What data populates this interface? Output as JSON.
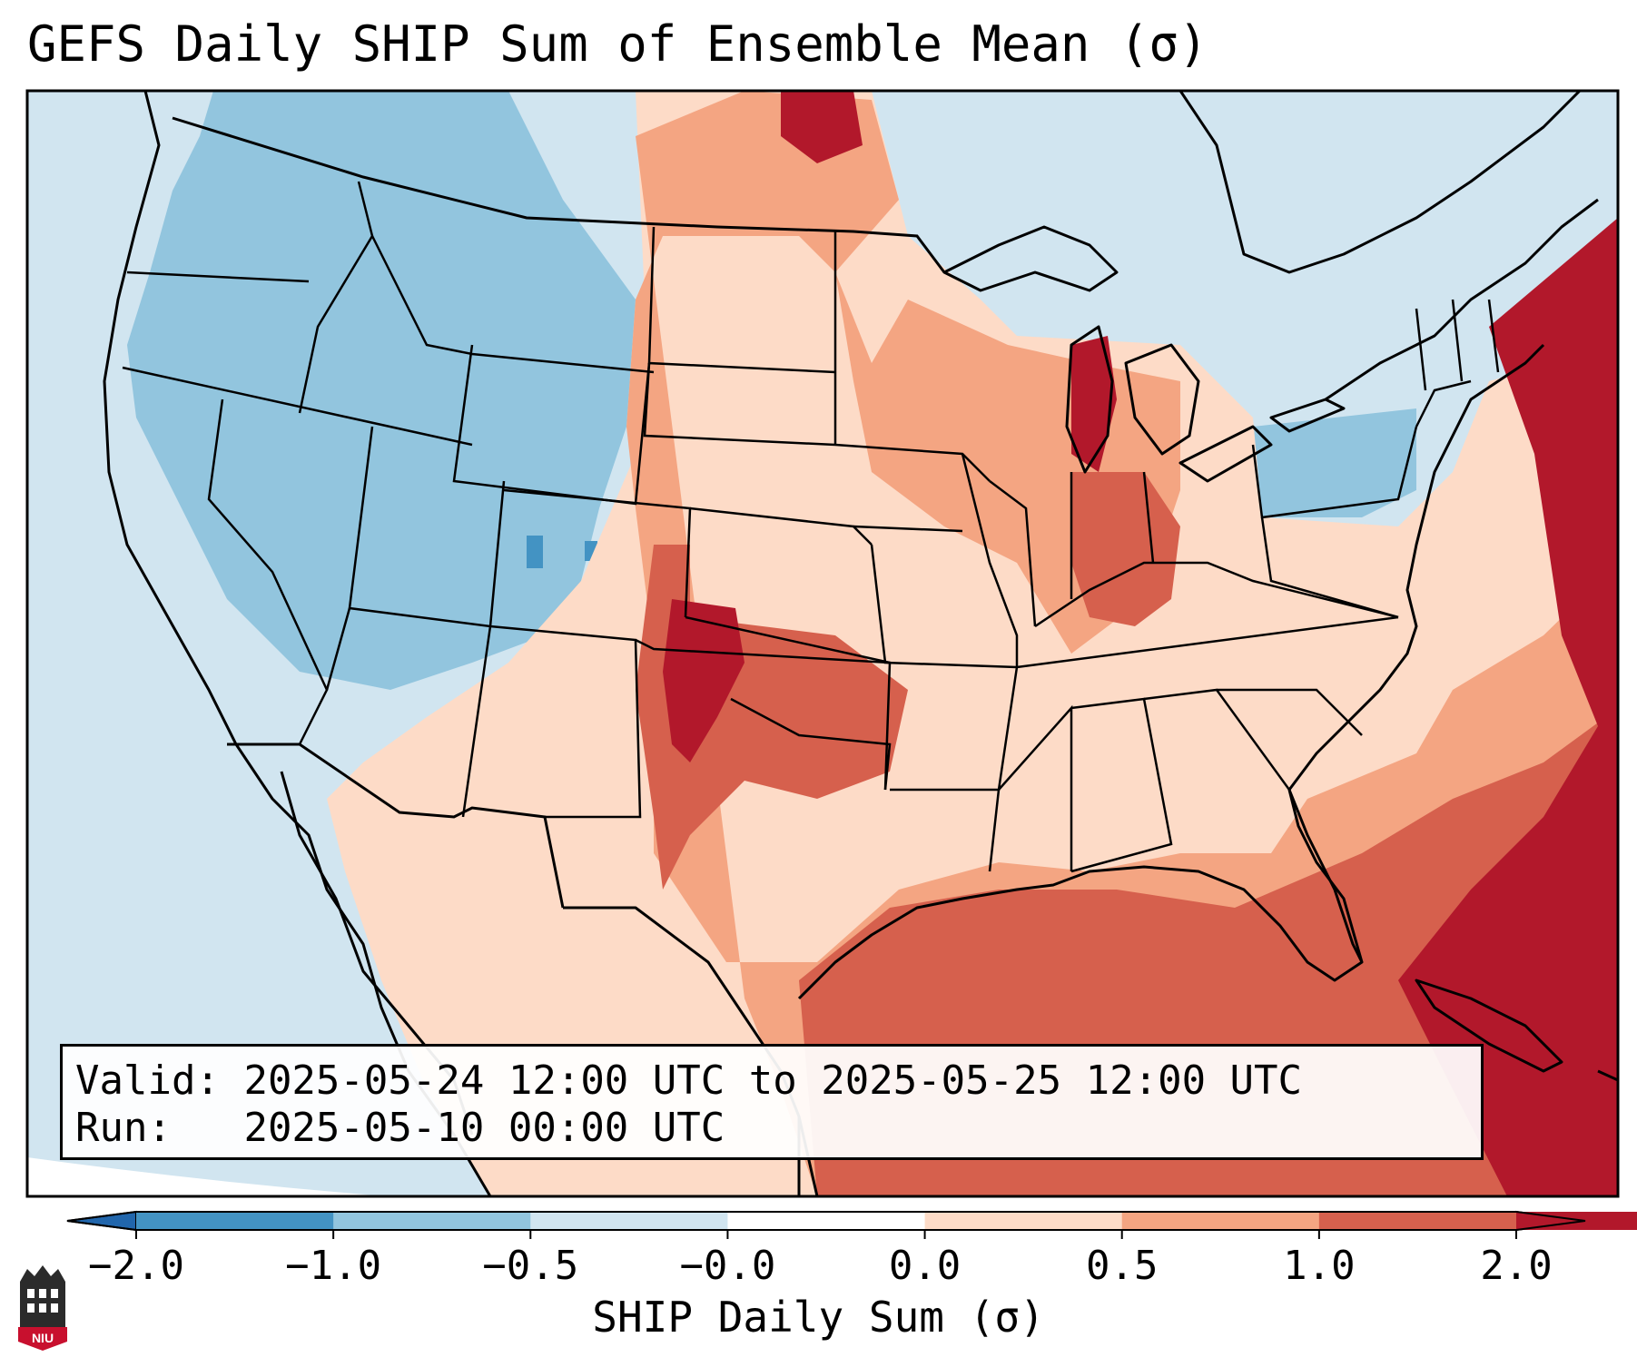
{
  "title": "GEFS Daily SHIP Sum of Ensemble Mean (σ)",
  "info": {
    "valid_label": "Valid:",
    "valid_value": "2025-05-24 12:00 UTC to 2025-05-25 12:00 UTC",
    "run_label": "Run:",
    "run_value": "2025-05-10 00:00 UTC"
  },
  "colorbar": {
    "title": "SHIP Daily Sum (σ)",
    "tick_labels": [
      "−2.0",
      "−1.0",
      "−0.5",
      "−0.0",
      "0.0",
      "0.5",
      "1.0",
      "2.0"
    ],
    "bin_colors": [
      "#4393c3",
      "#92c5de",
      "#d1e5f0",
      "#ffffff",
      "#fddbc7",
      "#f4a582",
      "#d6604d",
      "#b2182b"
    ],
    "under_color": "#2166ac",
    "over_color": "#b2182b",
    "extend": "both"
  },
  "map": {
    "projection": "lambert-conformal",
    "region": "CONUS",
    "background_color": "#d1e5f0",
    "boundaries": [
      "coastlines",
      "country-borders",
      "state-borders"
    ]
  },
  "logo": {
    "text": "NIU",
    "color": "#c8102e"
  }
}
